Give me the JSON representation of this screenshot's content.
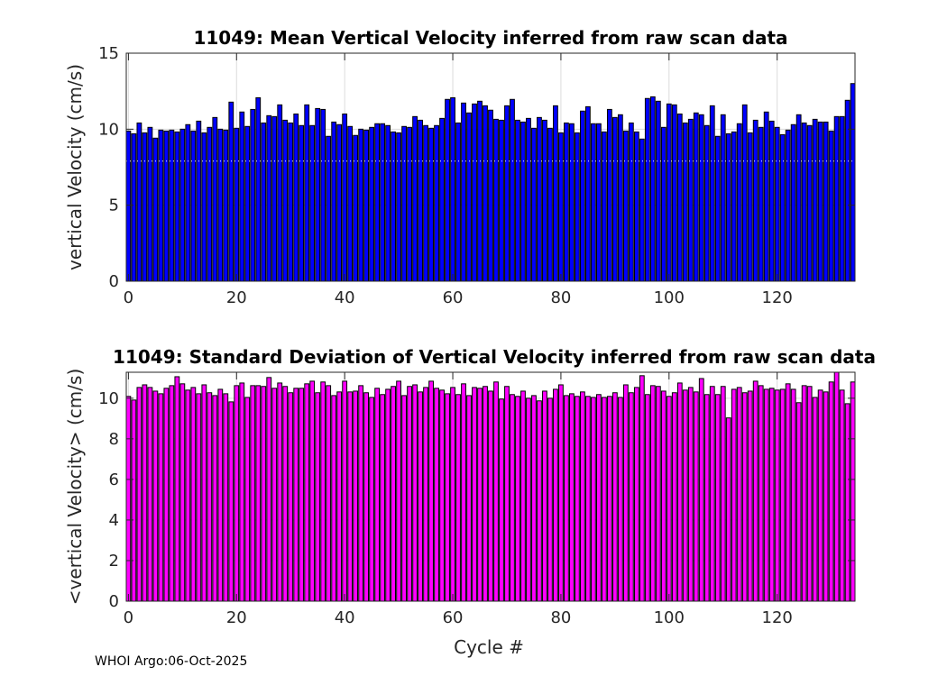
{
  "footer": "WHOI Argo:06-Oct-2025",
  "chart_data": [
    {
      "type": "bar",
      "title": "11049: Mean Vertical Velocity inferred from raw scan data",
      "xlabel": "",
      "ylabel": "vertical Velocity (cm/s)",
      "xlim": [
        -0.4,
        134.4
      ],
      "ylim": [
        0,
        15
      ],
      "xticks": [
        0,
        20,
        40,
        60,
        80,
        100,
        120
      ],
      "yticks": [
        0,
        5,
        10,
        15
      ],
      "grid": true,
      "bar_color": "#0000ff",
      "edge_color": "#000000",
      "reference_line": 7.9,
      "x_start": 0,
      "values": [
        9.88,
        9.7,
        10.41,
        9.76,
        10.12,
        9.41,
        9.94,
        9.88,
        9.94,
        9.82,
        10.0,
        10.3,
        9.88,
        10.53,
        9.76,
        10.12,
        10.77,
        10.0,
        9.94,
        11.78,
        10.06,
        11.13,
        10.18,
        11.3,
        12.07,
        10.41,
        10.89,
        10.83,
        11.6,
        10.59,
        10.41,
        11.0,
        10.24,
        11.6,
        10.24,
        11.36,
        11.3,
        9.53,
        10.47,
        10.3,
        11.0,
        10.18,
        9.59,
        10.0,
        9.94,
        10.12,
        10.36,
        10.36,
        10.24,
        9.82,
        9.76,
        10.18,
        10.12,
        10.83,
        10.59,
        10.24,
        10.06,
        10.24,
        10.71,
        11.96,
        12.07,
        10.41,
        11.72,
        11.07,
        11.66,
        11.84,
        11.54,
        11.25,
        10.65,
        10.59,
        11.54,
        11.96,
        10.59,
        10.47,
        10.71,
        10.06,
        10.77,
        10.59,
        10.06,
        11.54,
        9.76,
        10.41,
        10.36,
        9.76,
        11.19,
        11.48,
        10.36,
        10.36,
        9.82,
        11.3,
        10.77,
        10.95,
        9.88,
        10.41,
        9.82,
        9.35,
        12.02,
        12.13,
        11.84,
        10.12,
        11.66,
        11.6,
        11.0,
        10.41,
        10.65,
        11.07,
        10.95,
        10.24,
        11.54,
        9.53,
        10.95,
        9.7,
        9.82,
        10.36,
        11.6,
        9.76,
        10.59,
        10.12,
        11.13,
        10.53,
        10.12,
        9.64,
        9.94,
        10.3,
        10.95,
        10.41,
        10.24,
        10.65,
        10.47,
        10.47,
        9.88,
        10.83,
        10.83,
        11.9,
        13.0
      ]
    },
    {
      "type": "bar",
      "title": "11049: Standard Deviation of Vertical Velocity inferred from raw scan data",
      "xlabel": "Cycle #",
      "ylabel": "<vertical Velocity> (cm/s)",
      "xlim": [
        -0.4,
        134.4
      ],
      "ylim": [
        0,
        11.28
      ],
      "xticks": [
        0,
        20,
        40,
        60,
        80,
        100,
        120
      ],
      "yticks": [
        0,
        2,
        4,
        6,
        8,
        10
      ],
      "grid": true,
      "bar_color": "#ff00ff",
      "edge_color": "#000000",
      "x_start": 0,
      "values": [
        10.09,
        9.91,
        10.53,
        10.66,
        10.53,
        10.35,
        10.22,
        10.49,
        10.62,
        11.06,
        10.71,
        10.4,
        10.53,
        10.22,
        10.66,
        10.27,
        10.13,
        10.44,
        10.22,
        9.82,
        10.62,
        10.75,
        10.04,
        10.62,
        10.62,
        10.58,
        11.02,
        10.49,
        10.75,
        10.58,
        10.27,
        10.49,
        10.49,
        10.71,
        10.84,
        10.27,
        10.8,
        10.62,
        10.13,
        10.31,
        10.84,
        10.31,
        10.35,
        10.62,
        10.27,
        10.04,
        10.49,
        10.18,
        10.44,
        10.58,
        10.84,
        10.13,
        10.58,
        10.66,
        10.31,
        10.53,
        10.84,
        10.49,
        10.4,
        10.22,
        10.53,
        10.18,
        10.71,
        10.13,
        10.53,
        10.49,
        10.58,
        10.35,
        10.8,
        9.96,
        10.58,
        10.18,
        10.09,
        10.35,
        10.0,
        10.13,
        9.87,
        10.35,
        10.0,
        10.44,
        10.66,
        10.13,
        10.22,
        10.09,
        10.31,
        10.09,
        10.04,
        10.18,
        10.04,
        10.09,
        10.27,
        10.04,
        10.66,
        10.27,
        10.53,
        11.11,
        10.18,
        10.62,
        10.58,
        10.35,
        10.09,
        10.27,
        10.75,
        10.4,
        10.53,
        10.31,
        10.97,
        10.18,
        10.58,
        10.18,
        10.58,
        9.03,
        10.44,
        10.53,
        10.27,
        10.35,
        10.84,
        10.62,
        10.44,
        10.49,
        10.4,
        10.44,
        10.71,
        10.44,
        9.78,
        10.62,
        10.58,
        10.04,
        10.4,
        10.31,
        10.8,
        11.4,
        10.4,
        9.73,
        10.8
      ]
    }
  ]
}
